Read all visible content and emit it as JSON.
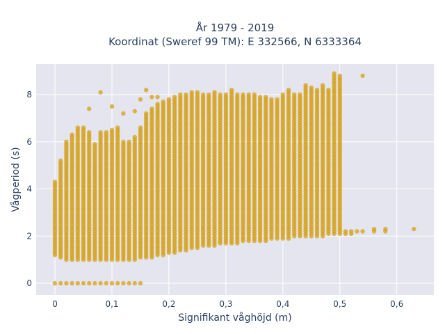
{
  "chart_data": {
    "type": "scatter",
    "title": "År 1979 - 2019",
    "subtitle": "Koordinat (Sweref 99 TM): E 332566, N 6333364",
    "xlabel": "Signifikant våghöjd (m)",
    "ylabel": "Vågperiod (s)",
    "xlim": [
      -0.033,
      0.665
    ],
    "ylim": [
      -0.5,
      9.3
    ],
    "x_ticks": [
      0,
      0.1,
      0.2,
      0.3,
      0.4,
      0.5,
      0.6
    ],
    "x_tick_labels": [
      "0",
      "0,1",
      "0,2",
      "0,3",
      "0,4",
      "0,5",
      "0,6"
    ],
    "y_ticks": [
      0,
      2,
      4,
      6,
      8
    ],
    "y_tick_labels": [
      "0",
      "2",
      "4",
      "6",
      "8"
    ],
    "grid": true,
    "marker_color": "#D4A017",
    "plot_bg": "#E5E5EF",
    "series": [
      {
        "description": "Points sampled along discrete Hs columns (step 0.01 m); each column spans its period range",
        "columns": [
          {
            "x": 0.0,
            "ymin": 1.2,
            "ymax": 4.3,
            "extra": [
              0.0
            ]
          },
          {
            "x": 0.01,
            "ymin": 1.1,
            "ymax": 5.2,
            "extra": [
              0.0
            ]
          },
          {
            "x": 0.02,
            "ymin": 1.0,
            "ymax": 6.0,
            "extra": [
              0.0
            ]
          },
          {
            "x": 0.03,
            "ymin": 1.0,
            "ymax": 6.3,
            "extra": [
              0.0
            ]
          },
          {
            "x": 0.04,
            "ymin": 1.0,
            "ymax": 6.6,
            "extra": [
              0.0
            ]
          },
          {
            "x": 0.05,
            "ymin": 1.0,
            "ymax": 6.6,
            "extra": [
              0.0
            ]
          },
          {
            "x": 0.06,
            "ymin": 1.0,
            "ymax": 6.4,
            "extra": [
              0.0,
              7.4
            ]
          },
          {
            "x": 0.07,
            "ymin": 1.0,
            "ymax": 5.9,
            "extra": [
              0.0
            ]
          },
          {
            "x": 0.08,
            "ymin": 1.0,
            "ymax": 6.4,
            "extra": [
              0.0,
              8.1
            ]
          },
          {
            "x": 0.09,
            "ymin": 1.0,
            "ymax": 6.4,
            "extra": [
              0.0
            ]
          },
          {
            "x": 0.1,
            "ymin": 1.0,
            "ymax": 6.5,
            "extra": [
              0.0,
              7.5
            ]
          },
          {
            "x": 0.11,
            "ymin": 1.0,
            "ymax": 6.6,
            "extra": [
              0.0
            ]
          },
          {
            "x": 0.12,
            "ymin": 1.0,
            "ymax": 6.0,
            "extra": [
              0.0,
              7.2
            ]
          },
          {
            "x": 0.13,
            "ymin": 1.0,
            "ymax": 6.0,
            "extra": [
              0.0
            ]
          },
          {
            "x": 0.14,
            "ymin": 1.0,
            "ymax": 6.2,
            "extra": [
              0.0,
              7.3
            ]
          },
          {
            "x": 0.15,
            "ymin": 1.1,
            "ymax": 6.6,
            "extra": [
              0.0,
              7.8
            ]
          },
          {
            "x": 0.16,
            "ymin": 1.1,
            "ymax": 7.2,
            "extra": [
              8.2
            ]
          },
          {
            "x": 0.17,
            "ymin": 1.1,
            "ymax": 7.4,
            "extra": [
              7.9
            ]
          },
          {
            "x": 0.18,
            "ymin": 1.2,
            "ymax": 7.6,
            "extra": [
              7.9
            ]
          },
          {
            "x": 0.19,
            "ymin": 1.2,
            "ymax": 7.7,
            "extra": []
          },
          {
            "x": 0.2,
            "ymin": 1.3,
            "ymax": 7.8,
            "extra": []
          },
          {
            "x": 0.21,
            "ymin": 1.3,
            "ymax": 7.9,
            "extra": []
          },
          {
            "x": 0.22,
            "ymin": 1.4,
            "ymax": 8.0,
            "extra": []
          },
          {
            "x": 0.23,
            "ymin": 1.4,
            "ymax": 8.0,
            "extra": []
          },
          {
            "x": 0.24,
            "ymin": 1.5,
            "ymax": 8.1,
            "extra": []
          },
          {
            "x": 0.25,
            "ymin": 1.5,
            "ymax": 8.1,
            "extra": []
          },
          {
            "x": 0.26,
            "ymin": 1.6,
            "ymax": 8.0,
            "extra": []
          },
          {
            "x": 0.27,
            "ymin": 1.6,
            "ymax": 8.0,
            "extra": []
          },
          {
            "x": 0.28,
            "ymin": 1.6,
            "ymax": 8.1,
            "extra": []
          },
          {
            "x": 0.29,
            "ymin": 1.7,
            "ymax": 8.0,
            "extra": []
          },
          {
            "x": 0.3,
            "ymin": 1.7,
            "ymax": 8.0,
            "extra": []
          },
          {
            "x": 0.31,
            "ymin": 1.7,
            "ymax": 8.2,
            "extra": []
          },
          {
            "x": 0.32,
            "ymin": 1.7,
            "ymax": 8.0,
            "extra": []
          },
          {
            "x": 0.33,
            "ymin": 1.8,
            "ymax": 8.0,
            "extra": []
          },
          {
            "x": 0.34,
            "ymin": 1.8,
            "ymax": 8.0,
            "extra": []
          },
          {
            "x": 0.35,
            "ymin": 1.8,
            "ymax": 8.0,
            "extra": []
          },
          {
            "x": 0.36,
            "ymin": 1.8,
            "ymax": 7.9,
            "extra": []
          },
          {
            "x": 0.37,
            "ymin": 1.8,
            "ymax": 7.9,
            "extra": []
          },
          {
            "x": 0.38,
            "ymin": 1.9,
            "ymax": 7.8,
            "extra": []
          },
          {
            "x": 0.39,
            "ymin": 1.9,
            "ymax": 7.8,
            "extra": []
          },
          {
            "x": 0.4,
            "ymin": 1.9,
            "ymax": 8.0,
            "extra": []
          },
          {
            "x": 0.41,
            "ymin": 1.9,
            "ymax": 8.2,
            "extra": []
          },
          {
            "x": 0.42,
            "ymin": 2.0,
            "ymax": 8.0,
            "extra": []
          },
          {
            "x": 0.43,
            "ymin": 2.0,
            "ymax": 8.0,
            "extra": []
          },
          {
            "x": 0.44,
            "ymin": 2.0,
            "ymax": 8.4,
            "extra": []
          },
          {
            "x": 0.45,
            "ymin": 2.0,
            "ymax": 8.3,
            "extra": []
          },
          {
            "x": 0.46,
            "ymin": 2.0,
            "ymax": 8.2,
            "extra": []
          },
          {
            "x": 0.47,
            "ymin": 2.0,
            "ymax": 8.4,
            "extra": []
          },
          {
            "x": 0.48,
            "ymin": 2.1,
            "ymax": 8.2,
            "extra": []
          },
          {
            "x": 0.49,
            "ymin": 2.1,
            "ymax": 8.9,
            "extra": []
          },
          {
            "x": 0.5,
            "ymin": 2.1,
            "ymax": 8.8,
            "extra": []
          },
          {
            "x": 0.51,
            "ymin": 2.1,
            "ymax": 2.2,
            "extra": []
          },
          {
            "x": 0.52,
            "ymin": 2.1,
            "ymax": 2.2,
            "extra": []
          },
          {
            "x": 0.53,
            "ymin": 2.2,
            "ymax": 2.2,
            "extra": []
          },
          {
            "x": 0.54,
            "ymin": 2.2,
            "ymax": 2.2,
            "extra": [
              8.8
            ]
          },
          {
            "x": 0.56,
            "ymin": 2.2,
            "ymax": 2.3,
            "extra": []
          },
          {
            "x": 0.58,
            "ymin": 2.2,
            "ymax": 2.3,
            "extra": []
          },
          {
            "x": 0.63,
            "ymin": 2.3,
            "ymax": 2.3,
            "extra": []
          }
        ]
      }
    ]
  }
}
